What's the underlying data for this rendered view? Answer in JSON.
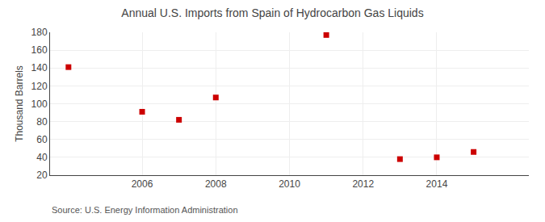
{
  "chart_data": {
    "type": "scatter",
    "title": "Annual U.S. Imports from Spain of Hydrocarbon Gas Liquids",
    "ylabel": "Thousand Barrels",
    "annotations": [
      "Source: U.S. Energy Information Administration"
    ],
    "x": [
      2004,
      2006,
      2007,
      2008,
      2011,
      2013,
      2014,
      2015
    ],
    "values": [
      141,
      91,
      82,
      107,
      177,
      38,
      40,
      46
    ],
    "color": "#cc0000",
    "marker": "square",
    "xlim": [
      2003.5,
      2016.5
    ],
    "xticks": [
      2006,
      2008,
      2010,
      2012,
      2014
    ],
    "ylim": [
      20,
      180
    ],
    "yticks": [
      20,
      40,
      60,
      80,
      100,
      120,
      140,
      160,
      180
    ],
    "grid": true
  }
}
